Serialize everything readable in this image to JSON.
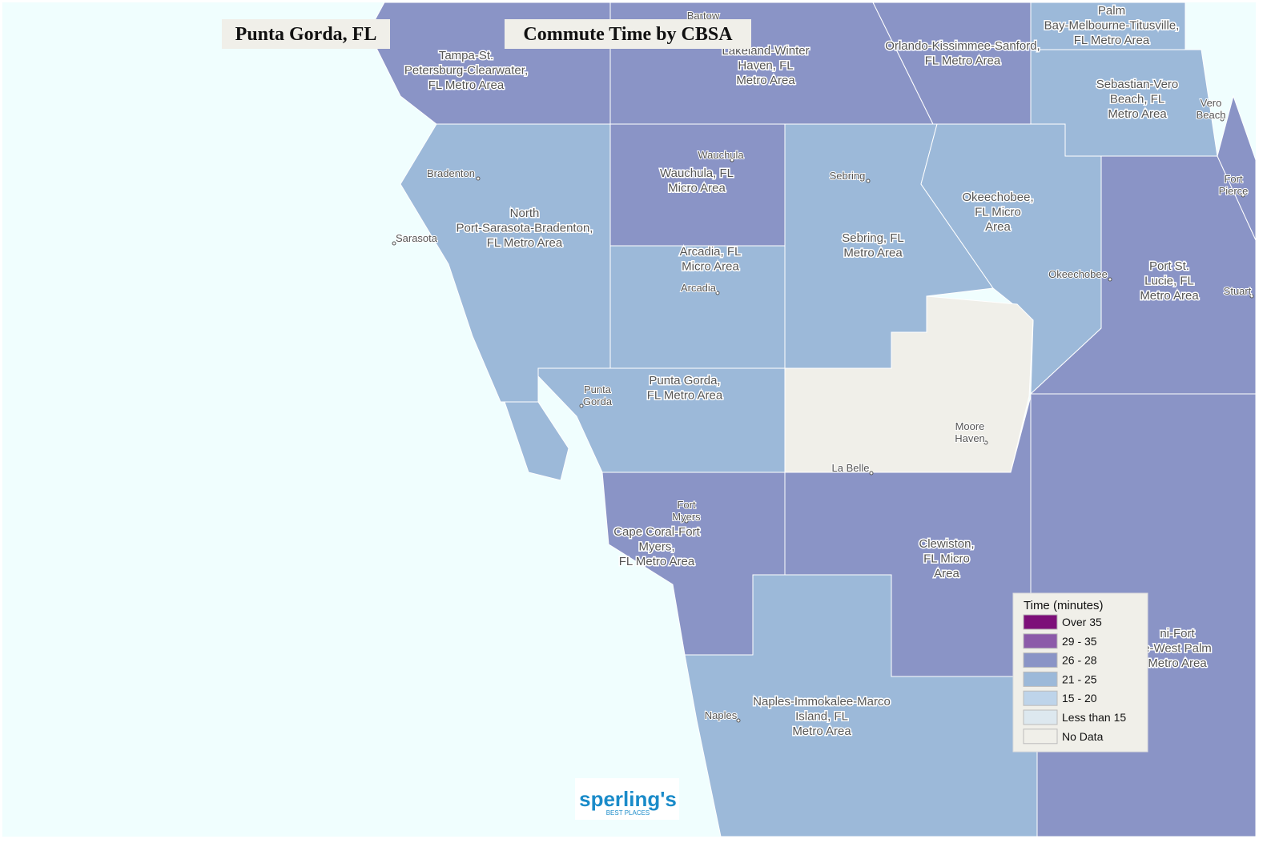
{
  "header": {
    "place": "Punta Gorda, FL",
    "title": "Commute Time by CBSA"
  },
  "legend": {
    "title": "Time (minutes)",
    "items": [
      {
        "label": "Over 35",
        "color": "#7d0f79"
      },
      {
        "label": "29 - 35",
        "color": "#8c5aa9"
      },
      {
        "label": "26 - 28",
        "color": "#8a94c6"
      },
      {
        "label": "21 - 25",
        "color": "#9cb9d9"
      },
      {
        "label": "15 - 20",
        "color": "#bed4ea"
      },
      {
        "label": "Less than 15",
        "color": "#dde8ef"
      },
      {
        "label": "No Data",
        "color": "#f0efe9"
      }
    ]
  },
  "regions": [
    {
      "lines": [
        "Tampa-St.",
        "Petersburg-Clearwater,",
        "FL Metro Area"
      ]
    },
    {
      "lines": [
        "Lakeland-Winter",
        "Haven, FL",
        "Metro Area"
      ]
    },
    {
      "lines": [
        "Orlando-Kissimmee-Sanford,",
        "FL Metro Area"
      ]
    },
    {
      "lines": [
        "Palm",
        "Bay-Melbourne-Titusville,",
        "FL Metro Area"
      ]
    },
    {
      "lines": [
        "Sebastian-Vero",
        "Beach, FL",
        "Metro Area"
      ]
    },
    {
      "lines": [
        "North",
        "Port-Sarasota-Bradenton,",
        "FL Metro Area"
      ]
    },
    {
      "lines": [
        "Wauchula, FL",
        "Micro Area"
      ]
    },
    {
      "lines": [
        "Arcadia, FL",
        "Micro Area"
      ]
    },
    {
      "lines": [
        "Sebring, FL",
        "Metro Area"
      ]
    },
    {
      "lines": [
        "Okeechobee,",
        "FL Micro",
        "Area"
      ]
    },
    {
      "lines": [
        "Port St.",
        "Lucie, FL",
        "Metro Area"
      ]
    },
    {
      "lines": [
        "Punta Gorda,",
        "FL Metro Area"
      ]
    },
    {
      "lines": [
        "Cape Coral-Fort",
        "Myers,",
        "FL Metro Area"
      ]
    },
    {
      "lines": [
        "Clewiston,",
        "FL Micro",
        "Area"
      ]
    },
    {
      "lines": [
        "Naples-Immokalee-Marco",
        "Island, FL",
        "Metro Area"
      ]
    },
    {
      "lines": [
        "ni-Fort",
        "e-West Palm",
        "Metro Area"
      ]
    }
  ],
  "cities": [
    {
      "lines": [
        "Bartow"
      ]
    },
    {
      "lines": [
        "Wauchula"
      ]
    },
    {
      "lines": [
        "Bradenton"
      ]
    },
    {
      "lines": [
        "Sebring"
      ]
    },
    {
      "lines": [
        "Sarasota"
      ]
    },
    {
      "lines": [
        "Arcadia"
      ]
    },
    {
      "lines": [
        "Okeechobee"
      ]
    },
    {
      "lines": [
        "Punta",
        "Gorda"
      ]
    },
    {
      "lines": [
        "Moore",
        "Haven"
      ]
    },
    {
      "lines": [
        "La Belle"
      ]
    },
    {
      "lines": [
        "Fort",
        "Myers"
      ]
    },
    {
      "lines": [
        "Naples"
      ]
    },
    {
      "lines": [
        "Vero",
        "Beach"
      ]
    },
    {
      "lines": [
        "Fort",
        "Pierce"
      ]
    },
    {
      "lines": [
        "Stuart"
      ]
    }
  ],
  "logo": {
    "name": "sperling's",
    "tagline": "BEST PLACES"
  }
}
